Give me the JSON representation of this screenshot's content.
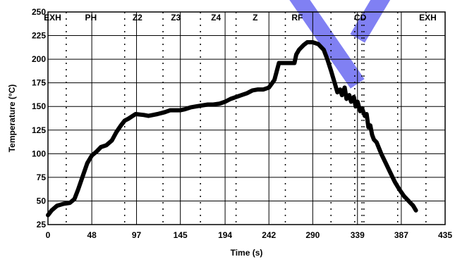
{
  "chart_data": {
    "type": "line",
    "title": "",
    "xlabel": "Time (s)",
    "ylabel": "Temperature (°C)",
    "xlim": [
      0,
      435
    ],
    "ylim": [
      25,
      250
    ],
    "grid": true,
    "x_ticks": [
      "0",
      "48",
      "97",
      "145",
      "194",
      "242",
      "290",
      "339",
      "387",
      "435"
    ],
    "y_ticks": [
      "25",
      "50",
      "75",
      "100",
      "125",
      "150",
      "175",
      "200",
      "225",
      "250"
    ],
    "zone_labels": [
      {
        "label": "EXH",
        "x": 5
      },
      {
        "label": "PH",
        "x": 47
      },
      {
        "label": "Z2",
        "x": 98
      },
      {
        "label": "Z3",
        "x": 140
      },
      {
        "label": "Z4",
        "x": 184
      },
      {
        "label": "Z",
        "x": 227
      },
      {
        "label": "RF",
        "x": 273
      },
      {
        "label": "CD",
        "x": 342
      },
      {
        "label": "EXH",
        "x": 416
      }
    ],
    "zone_boundaries": [
      20,
      84,
      126,
      167,
      206,
      260,
      310,
      336,
      344,
      346,
      383,
      414
    ],
    "series": [
      {
        "color": "#000000",
        "x": [
          0,
          4,
          10,
          17,
          24,
          29,
          33,
          38,
          43,
          48,
          53,
          58,
          64,
          70,
          75,
          80,
          84,
          88,
          96,
          105,
          110,
          115,
          120,
          128,
          134,
          140,
          145,
          150,
          156,
          162,
          168,
          175,
          181,
          188,
          194,
          200,
          206,
          212,
          218,
          224,
          230,
          236,
          242,
          248,
          253,
          258,
          260,
          262,
          264,
          270,
          272,
          275,
          280,
          284,
          290,
          296,
          302,
          306,
          310,
          314,
          317,
          320,
          322,
          325,
          327,
          330,
          332,
          335,
          337,
          339,
          342,
          344,
          347,
          349,
          351,
          353,
          355,
          357,
          360,
          365,
          370,
          375,
          380,
          385,
          390,
          395,
          400,
          403
        ],
        "values": [
          35,
          40,
          45,
          47,
          48,
          52,
          62,
          76,
          90,
          98,
          102,
          107,
          109,
          114,
          123,
          130,
          135,
          137,
          142,
          141,
          140,
          141,
          142,
          144,
          146,
          146,
          146,
          147,
          149,
          150,
          151,
          152,
          152,
          153,
          155,
          158,
          160,
          162,
          164,
          167,
          168,
          168,
          170,
          178,
          196,
          196,
          196,
          196,
          196,
          196,
          205,
          210,
          215,
          218,
          218,
          216,
          210,
          200,
          188,
          175,
          165,
          168,
          162,
          170,
          158,
          162,
          155,
          160,
          150,
          155,
          145,
          148,
          140,
          142,
          128,
          130,
          120,
          115,
          112,
          100,
          90,
          80,
          70,
          62,
          55,
          50,
          45,
          40
        ]
      }
    ],
    "watermark_color": "#6b6bf2"
  }
}
